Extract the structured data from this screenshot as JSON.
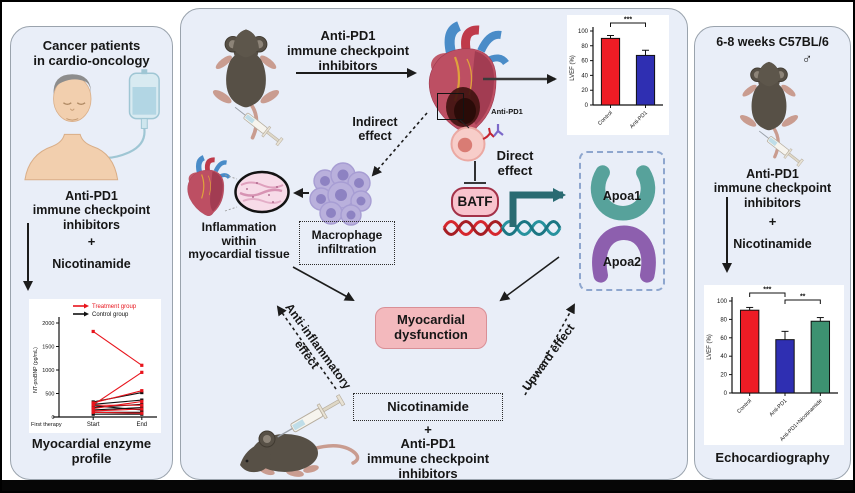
{
  "figure": {
    "left_panel": {
      "title": "Cancer patients\nin cardio-oncology",
      "treatment": "Anti-PD1\nimmune checkpoint\ninhibitors",
      "plus": "+",
      "nicotinamide": "Nicotinamide",
      "caption": "Myocardial enzyme\nprofile"
    },
    "middle_panel": {
      "treatment_top": "Anti-PD1\nimmune checkpoint\ninhibitors",
      "indirect_effect": "Indirect\neffect",
      "direct_effect": "Direct\neffect",
      "anti_pd1_tag": "Anti-PD1",
      "batf": "BATF",
      "apoa1": "Apoa1",
      "apoa2": "Apoa2",
      "macrophage_infiltration": "Macrophage\ninfiltration",
      "inflammation": "Inflammation\nwithin\nmyocardial tissue",
      "myocardial_dysfunction": "Myocardial\ndysfunction",
      "anti_inflammatory_effect": "Anti-inflammatory\neffect",
      "upward_effect": "Upward effect",
      "nicotinamide_box": "Nicotinamide",
      "plus": "+",
      "treatment_bottom": "Anti-PD1\nimmune checkpoint\ninhibitors"
    },
    "right_panel": {
      "title": "6-8 weeks C57BL/6",
      "male_symbol": "♂",
      "treatment": "Anti-PD1\nimmune checkpoint\ninhibitors",
      "plus": "+",
      "nicotinamide": "Nicotinamide",
      "caption": "Echocardiography"
    }
  },
  "colors": {
    "panel_background": "#e9eef8",
    "panel_border": "#9aa3ad",
    "batf_fill": "#f8c3cd",
    "batf_border": "#a33148",
    "dysfunction_fill": "#f3b9bd",
    "apoa_box_border": "#8ea6ce",
    "apoa1_fill": "#57a29b",
    "apoa2_fill": "#8d5fae",
    "control_bar": "#ee1c25",
    "anti_pd1_bar": "#2f2fb2",
    "combo_bar": "#3d9271",
    "teal_arrow": "#2a6b72"
  },
  "chart_data": [
    {
      "type": "line",
      "title": "Myocardial enzyme profile",
      "x_categories": [
        "Start",
        "End"
      ],
      "x_note": "First therapy",
      "ylabel": "NT-proBNP (pg/mL)",
      "ylim": [
        0,
        2000
      ],
      "yticks": [
        0,
        500,
        1000,
        1500,
        2000
      ],
      "legend_position": "top-left",
      "legend": [
        {
          "name": "Treatment group",
          "color": "#e8141c"
        },
        {
          "name": "Control group",
          "color": "#111111"
        }
      ],
      "series": [
        {
          "name": "Treatment group",
          "color": "#e8141c",
          "pairs": [
            [
              1820,
              1100
            ],
            [
              260,
              950
            ],
            [
              300,
              560
            ],
            [
              180,
              330
            ],
            [
              250,
              250
            ],
            [
              130,
              170
            ],
            [
              100,
              80
            ]
          ]
        },
        {
          "name": "Control group",
          "color": "#111111",
          "pairs": [
            [
              320,
              520
            ],
            [
              270,
              360
            ],
            [
              200,
              270
            ],
            [
              240,
              150
            ],
            [
              150,
              200
            ],
            [
              100,
              100
            ],
            [
              60,
              60
            ]
          ]
        }
      ]
    },
    {
      "type": "bar",
      "title": "",
      "categories": [
        "Control",
        "Anti-PD1"
      ],
      "values": [
        90,
        67
      ],
      "errors": [
        4,
        7
      ],
      "bar_colors": [
        "#ee1c25",
        "#2f2fb2"
      ],
      "ylabel": "LVEF (%)",
      "ylim": [
        0,
        100
      ],
      "yticks": [
        0,
        20,
        40,
        60,
        80,
        100
      ],
      "significance": [
        {
          "from": 0,
          "to": 1,
          "label": "***"
        }
      ]
    },
    {
      "type": "bar",
      "title": "Echocardiography",
      "categories": [
        "Control",
        "Anti-PD1",
        "Anti-PD1+Nicotinamide"
      ],
      "values": [
        90,
        58,
        78
      ],
      "errors": [
        3,
        9,
        4
      ],
      "bar_colors": [
        "#ee1c25",
        "#2f2fb2",
        "#3d9271"
      ],
      "ylabel": "LVEF (%)",
      "ylim": [
        0,
        100
      ],
      "yticks": [
        0,
        20,
        40,
        60,
        80,
        100
      ],
      "significance": [
        {
          "from": 0,
          "to": 1,
          "label": "***"
        },
        {
          "from": 1,
          "to": 2,
          "label": "**"
        }
      ]
    }
  ]
}
